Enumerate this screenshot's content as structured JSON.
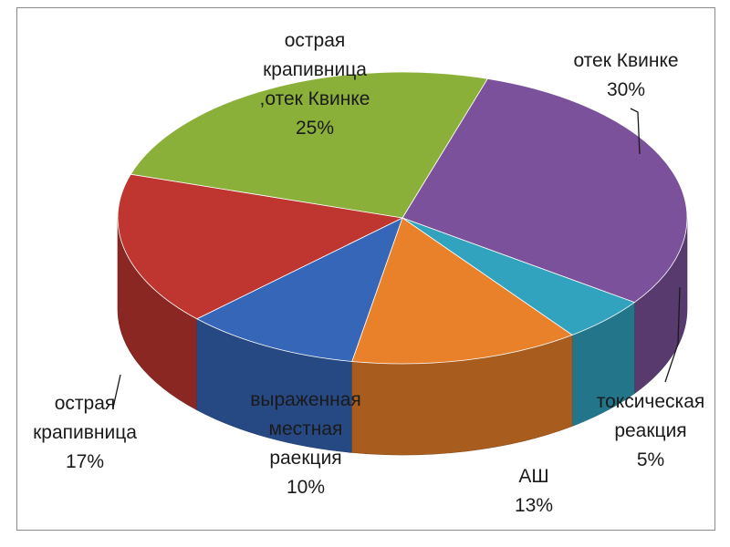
{
  "chart_data": {
    "type": "pie",
    "style": "3d",
    "slices": [
      {
        "name": "отек Квинке",
        "value": 30,
        "pct": "30%",
        "color": "#7a519a",
        "label_lines": [
          "отек Квинке",
          "30%"
        ]
      },
      {
        "name": "токсическая реакция",
        "value": 5,
        "pct": "5%",
        "color": "#31a3bf",
        "label_lines": [
          "токсическая",
          "реакция",
          "5%"
        ]
      },
      {
        "name": "АШ",
        "value": 13,
        "pct": "13%",
        "color": "#e9812a",
        "label_lines": [
          "АШ",
          "13%"
        ]
      },
      {
        "name": "выраженная местная раекция",
        "value": 10,
        "pct": "10%",
        "color": "#3566b8",
        "label_lines": [
          "выраженная",
          "местная",
          "раекция",
          "10%"
        ]
      },
      {
        "name": "острая крапивница",
        "value": 17,
        "pct": "17%",
        "color": "#bf3631",
        "label_lines": [
          "острая",
          "крапивница",
          "17%"
        ]
      },
      {
        "name": "острая крапивница ,отек Квинке",
        "value": 25,
        "pct": "25%",
        "color": "#8bb03a",
        "label_lines": [
          "острая",
          "крапивница",
          ",отек  Квинке",
          "25%"
        ]
      }
    ]
  }
}
